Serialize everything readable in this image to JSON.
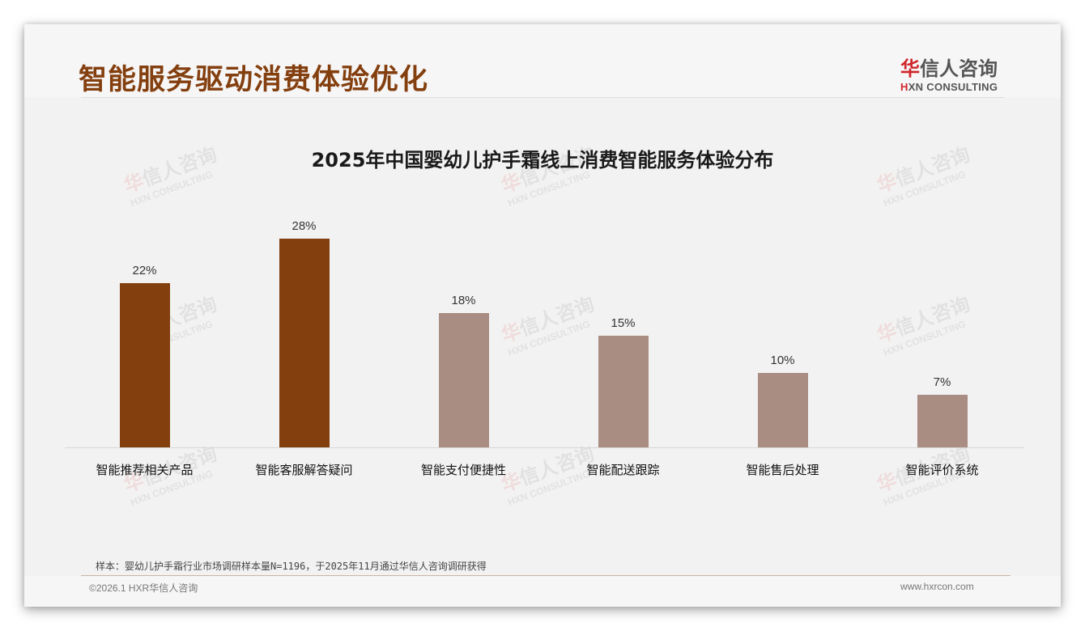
{
  "header": {
    "title": "智能服务驱动消费体验优化",
    "logo": {
      "cn_red": "华",
      "cn_rest": "信人咨询",
      "en_red": "H",
      "en_rest": "XN CONSULTING"
    }
  },
  "watermark": {
    "cn_red": "华",
    "cn_rest": "信人咨询",
    "en": "HXN CONSULTING"
  },
  "colors": {
    "title": "#843f0f",
    "bar_highlight": "#843f0f",
    "bar_normal": "#a98c82",
    "logo_red": "#d0262a"
  },
  "chart_data": {
    "type": "bar",
    "title": "2025年中国婴幼儿护手霜线上消费智能服务体验分布",
    "categories": [
      "智能推荐相关产品",
      "智能客服解答疑问",
      "智能支付便捷性",
      "智能配送跟踪",
      "智能售后处理",
      "智能评价系统"
    ],
    "values": [
      22,
      28,
      18,
      15,
      10,
      7
    ],
    "value_labels": [
      "22%",
      "28%",
      "18%",
      "15%",
      "10%",
      "7%"
    ],
    "highlighted": [
      true,
      true,
      false,
      false,
      false,
      false
    ],
    "xlabel": "",
    "ylabel": "",
    "ylim": [
      0,
      30
    ],
    "grid": false,
    "legend": "none"
  },
  "footer": {
    "note": "样本：婴幼儿护手霜行业市场调研样本量N=1196，于2025年11月通过华信人咨询调研获得",
    "copyright": "©2026.1 HXR华信人咨询",
    "website": "www.hxrcon.com"
  }
}
